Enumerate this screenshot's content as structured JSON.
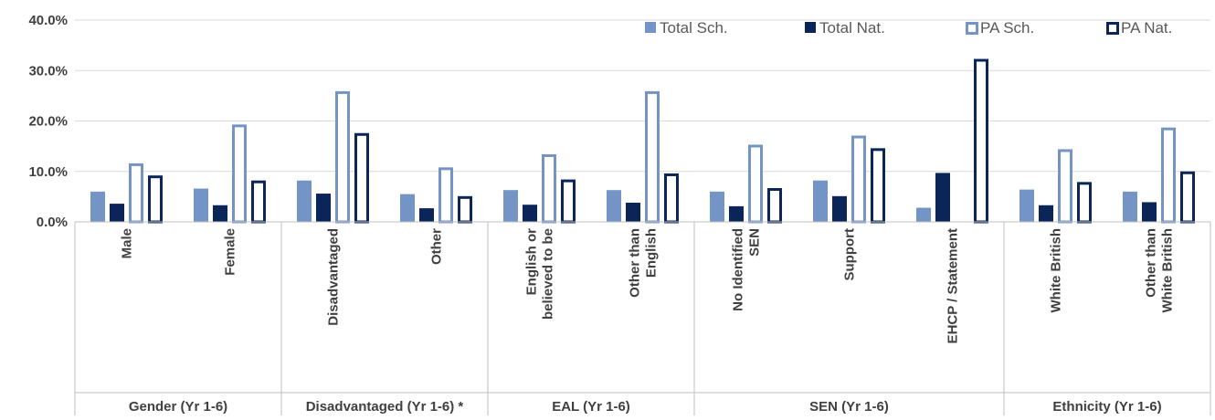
{
  "chart_data": {
    "type": "bar",
    "title": "",
    "xlabel": "",
    "ylabel": "",
    "ylim": [
      0,
      40
    ],
    "y_ticks": [
      "0.0%",
      "10.0%",
      "20.0%",
      "30.0%",
      "40.0%"
    ],
    "y_tick_values": [
      0,
      10,
      20,
      30,
      40
    ],
    "grid": true,
    "legend_position": "top-right",
    "categories": [
      [
        "Male"
      ],
      [
        "Female"
      ],
      [
        "Disadvantaged"
      ],
      [
        "Other"
      ],
      [
        "English or",
        "believed to be"
      ],
      [
        "Other than",
        "English"
      ],
      [
        "No Identified",
        "SEN"
      ],
      [
        "Support"
      ],
      [
        "EHCP / Statement"
      ],
      [
        "White British"
      ],
      [
        "Other than",
        "White British"
      ]
    ],
    "groups": [
      {
        "label": "Gender (Yr 1-6)",
        "count": 2
      },
      {
        "label": "Disadvantaged (Yr 1-6) *",
        "count": 2
      },
      {
        "label": "EAL (Yr 1-6)",
        "count": 2
      },
      {
        "label": "SEN (Yr 1-6)",
        "count": 3
      },
      {
        "label": "Ethnicity (Yr 1-6)",
        "count": 2
      }
    ],
    "series": [
      {
        "name": "Total Sch.",
        "style": "filled",
        "color": "#7394C4",
        "values": [
          6.0,
          6.6,
          8.2,
          5.5,
          6.3,
          6.3,
          6.0,
          8.2,
          2.8,
          6.4,
          6.0
        ]
      },
      {
        "name": "Total Nat.",
        "style": "filled",
        "color": "#0B2558",
        "values": [
          3.6,
          3.3,
          5.6,
          2.7,
          3.4,
          3.8,
          3.1,
          5.1,
          9.7,
          3.3,
          3.9
        ]
      },
      {
        "name": "PA Sch.",
        "style": "outline",
        "color": "#7394C4",
        "values": [
          11.6,
          19.3,
          25.9,
          10.8,
          13.4,
          25.9,
          15.3,
          17.1,
          0,
          14.4,
          18.7
        ]
      },
      {
        "name": "PA Nat.",
        "style": "outline",
        "color": "#0B2558",
        "values": [
          9.2,
          8.2,
          17.6,
          5.1,
          8.4,
          9.6,
          6.7,
          14.6,
          32.3,
          7.9,
          10.0
        ]
      }
    ]
  }
}
